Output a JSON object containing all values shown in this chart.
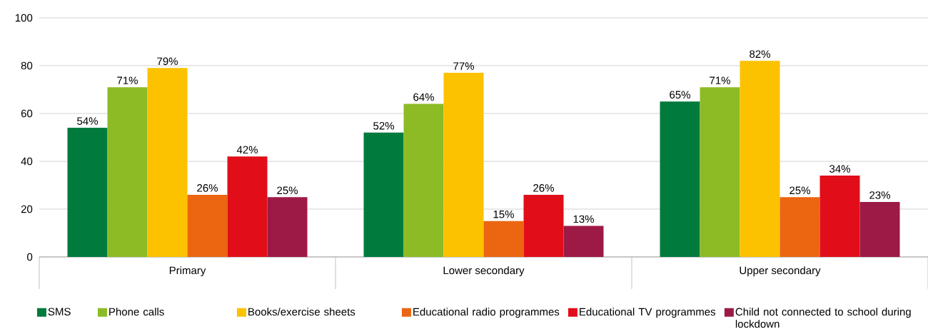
{
  "chart_data": {
    "type": "bar",
    "categories": [
      "Primary",
      "Lower secondary",
      "Upper secondary"
    ],
    "series": [
      {
        "name": "SMS",
        "color": "#007a3d",
        "values": [
          54,
          52,
          65
        ],
        "value_labels": [
          "54%",
          "52%",
          "65%"
        ]
      },
      {
        "name": "Phone calls",
        "color": "#8cbb26",
        "values": [
          71,
          64,
          71
        ],
        "value_labels": [
          "71%",
          "64%",
          "71%"
        ]
      },
      {
        "name": "Books/exercise sheets",
        "color": "#fcc200",
        "values": [
          79,
          77,
          82
        ],
        "value_labels": [
          "79%",
          "77%",
          "82%"
        ]
      },
      {
        "name": "Educational radio programmes",
        "color": "#ec6511",
        "values": [
          26,
          15,
          25
        ],
        "value_labels": [
          "26%",
          "15%",
          "25%"
        ]
      },
      {
        "name": "Educational TV programmes",
        "color": "#e10e1a",
        "values": [
          42,
          26,
          34
        ],
        "value_labels": [
          "42%",
          "26%",
          "34%"
        ]
      },
      {
        "name": "Child not connected to school during lockdown",
        "color": "#9d1a47",
        "values": [
          25,
          13,
          23
        ],
        "value_labels": [
          "25%",
          "13%",
          "23%"
        ]
      }
    ],
    "ylim": [
      0,
      100
    ],
    "yticks": [
      0,
      20,
      40,
      60,
      80,
      100
    ],
    "grid": "y",
    "legend": "bottom"
  }
}
